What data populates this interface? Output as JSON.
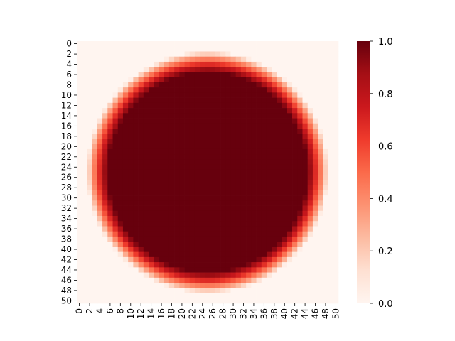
{
  "chart_data": {
    "type": "heatmap",
    "title": "",
    "xlabel": "",
    "ylabel": "",
    "colormap": "Reds",
    "value_range": [
      0,
      1
    ],
    "n_rows": 51,
    "n_cols": 51,
    "x_tick_labels": [
      "0",
      "2",
      "4",
      "6",
      "8",
      "10",
      "12",
      "14",
      "16",
      "18",
      "20",
      "22",
      "24",
      "26",
      "28",
      "30",
      "32",
      "34",
      "36",
      "38",
      "40",
      "42",
      "44",
      "46",
      "48",
      "50"
    ],
    "y_tick_labels": [
      "0",
      "2",
      "4",
      "6",
      "8",
      "10",
      "12",
      "14",
      "16",
      "18",
      "20",
      "22",
      "24",
      "26",
      "28",
      "30",
      "32",
      "34",
      "36",
      "38",
      "40",
      "42",
      "44",
      "46",
      "48",
      "50"
    ],
    "colorbar_tick_labels": [
      "0.0",
      "0.2",
      "0.4",
      "0.6",
      "0.8",
      "1.0"
    ],
    "pattern": {
      "shape": "disk",
      "center_row": 25.5,
      "center_col": 25.5,
      "full_value_radius": 19.5,
      "edge_radius": 23.5,
      "outside_value": 0.0,
      "inside_value": 1.0
    }
  }
}
